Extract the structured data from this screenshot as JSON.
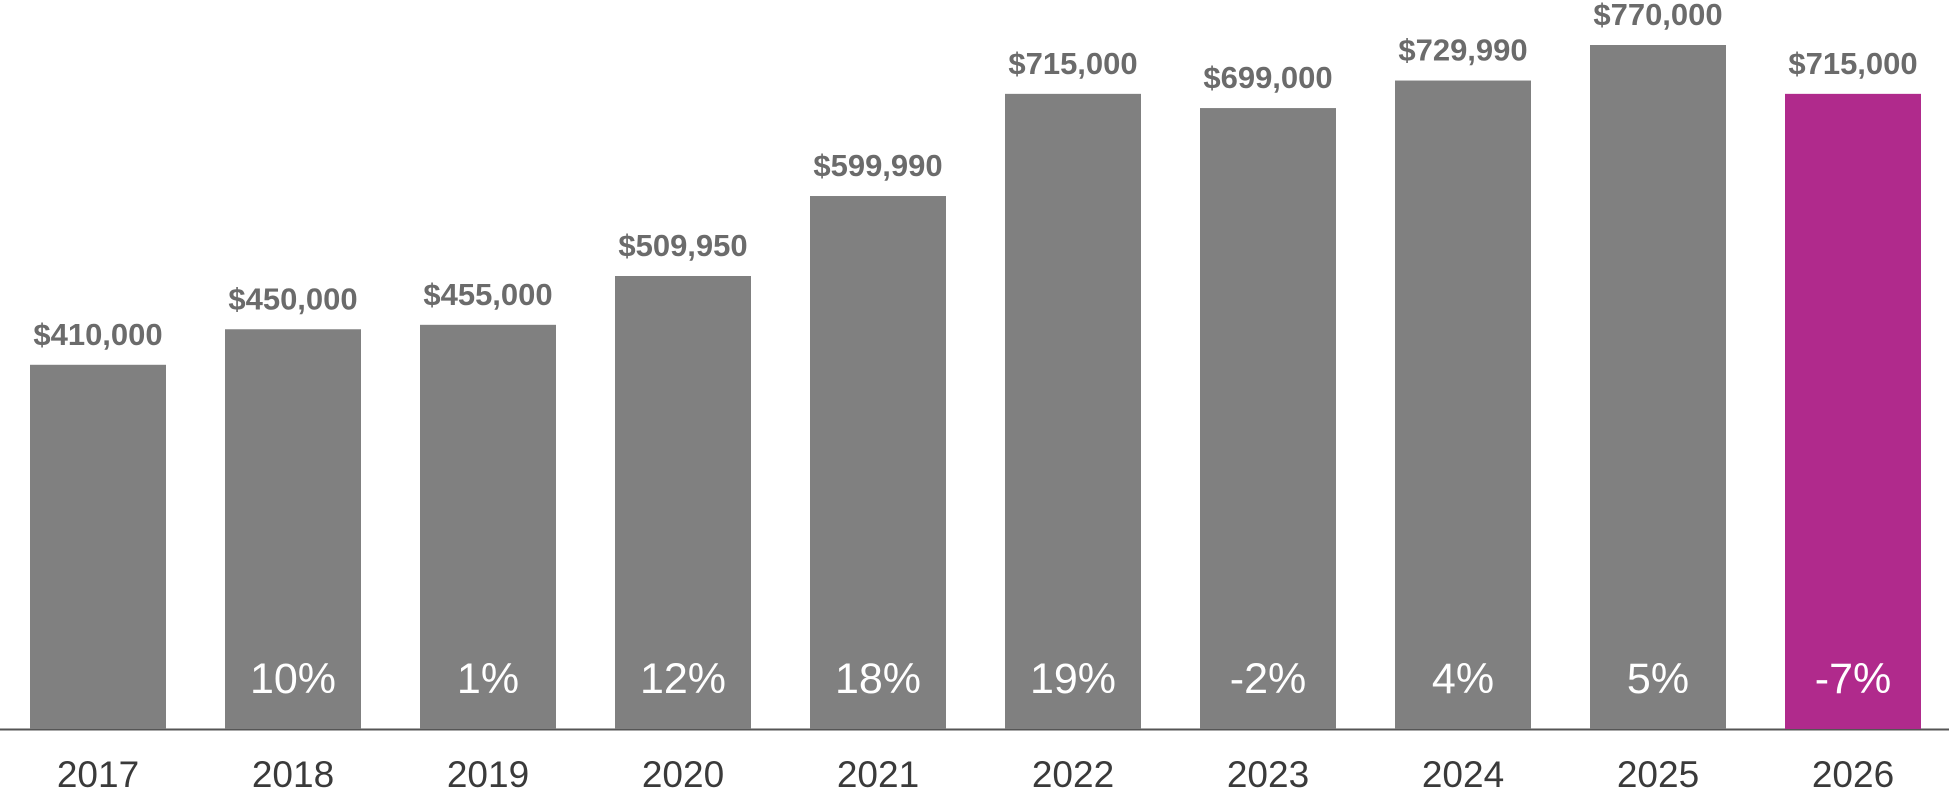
{
  "chart_data": {
    "type": "bar",
    "categories": [
      "2017",
      "2018",
      "2019",
      "2020",
      "2021",
      "2022",
      "2023",
      "2024",
      "2025",
      "2026"
    ],
    "values": [
      410000,
      450000,
      455000,
      509950,
      599990,
      715000,
      699000,
      729990,
      770000,
      715000
    ],
    "value_labels": [
      "$410,000",
      "$450,000",
      "$455,000",
      "$509,950",
      "$599,990",
      "$715,000",
      "$699,000",
      "$729,990",
      "$770,000",
      "$715,000"
    ],
    "change_labels": [
      "",
      "10%",
      "1%",
      "12%",
      "18%",
      "19%",
      "-2%",
      "4%",
      "5%",
      "-7%"
    ],
    "highlight_index": 9,
    "ylim": [
      0,
      800000
    ],
    "grid": false,
    "title": "",
    "xlabel": "",
    "ylabel": ""
  },
  "colors": {
    "bar": "#808080",
    "highlight": "#b02a8c",
    "baseline": "#555555"
  }
}
